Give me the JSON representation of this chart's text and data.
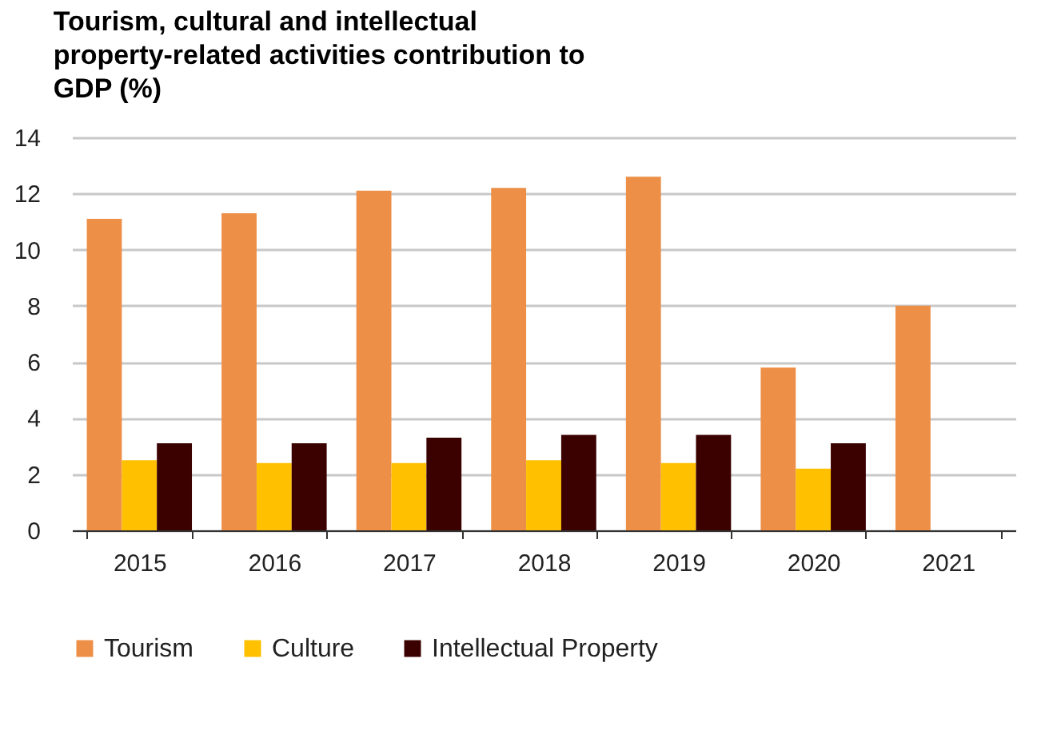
{
  "chart_data": {
    "type": "bar",
    "title": "Tourism, cultural and intellectual property-related activities contribution to GDP (%)",
    "categories": [
      "2015",
      "2016",
      "2017",
      "2018",
      "2019",
      "2020",
      "2021"
    ],
    "series": [
      {
        "name": "Tourism",
        "color": "#ed8f47",
        "values": [
          11.1,
          11.3,
          12.1,
          12.2,
          12.6,
          5.8,
          8.0
        ]
      },
      {
        "name": "Culture",
        "color": "#ffc000",
        "values": [
          2.5,
          2.4,
          2.4,
          2.5,
          2.4,
          2.2,
          null
        ]
      },
      {
        "name": "Intellectual Property",
        "color": "#3b0000",
        "values": [
          3.1,
          3.1,
          3.3,
          3.4,
          3.4,
          3.1,
          null
        ]
      }
    ],
    "ylim": [
      0,
      14
    ],
    "yticks": [
      0,
      2,
      4,
      6,
      8,
      10,
      12,
      14
    ],
    "grid": "y",
    "legend": "bottom"
  }
}
